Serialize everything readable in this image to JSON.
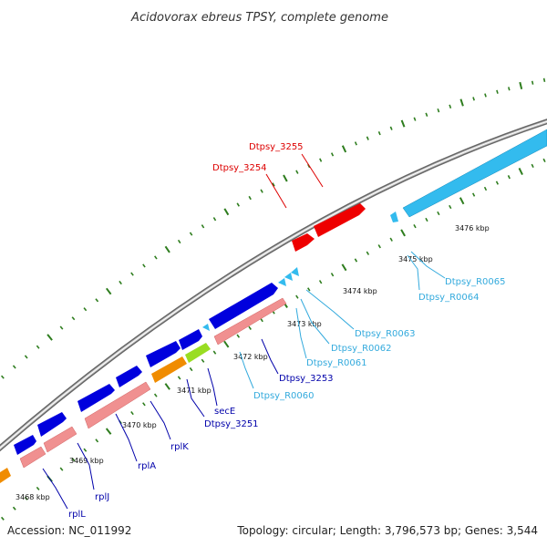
{
  "title": "Acidovorax ebreus TPSY, complete genome",
  "footer": {
    "accession": "Accession: NC_011992",
    "summary": "Topology: circular; Length: 3,796,573 bp; Genes: 3,544"
  },
  "colors": {
    "backbone": "#8a8a8a",
    "tick": "#2e7d1e",
    "cds_forward": "#0000dd",
    "cds_reverse_pink": "#f09090",
    "rna": "#33bbee",
    "highlight_red": "#ee0000",
    "label_blue": "#0000aa",
    "label_cyan": "#33aadd",
    "label_red": "#dd0000",
    "orange": "#f08c00",
    "lime": "#99dd22"
  },
  "kbp_labels": [
    "3468 kbp",
    "3469 kbp",
    "3470 kbp",
    "3471 kbp",
    "3472 kbp",
    "3473 kbp",
    "3474 kbp",
    "3475 kbp",
    "3476 kbp"
  ],
  "feature_labels": [
    {
      "id": "dtpsy-3255",
      "text": "Dtpsy_3255",
      "color": "red"
    },
    {
      "id": "dtpsy-3254",
      "text": "Dtpsy_3254",
      "color": "red"
    },
    {
      "id": "dtpsy-r0065",
      "text": "Dtpsy_R0065",
      "color": "cyan"
    },
    {
      "id": "dtpsy-r0064",
      "text": "Dtpsy_R0064",
      "color": "cyan"
    },
    {
      "id": "dtpsy-r0063",
      "text": "Dtpsy_R0063",
      "color": "cyan"
    },
    {
      "id": "dtpsy-r0062",
      "text": "Dtpsy_R0062",
      "color": "cyan"
    },
    {
      "id": "dtpsy-r0061",
      "text": "Dtpsy_R0061",
      "color": "cyan"
    },
    {
      "id": "dtpsy-3253",
      "text": "Dtpsy_3253",
      "color": "blue"
    },
    {
      "id": "dtpsy-r0060",
      "text": "Dtpsy_R0060",
      "color": "cyan"
    },
    {
      "id": "sece",
      "text": "secE",
      "color": "blue"
    },
    {
      "id": "dtpsy-3251",
      "text": "Dtpsy_3251",
      "color": "blue"
    },
    {
      "id": "rplk",
      "text": "rplK",
      "color": "blue"
    },
    {
      "id": "rpla",
      "text": "rplA",
      "color": "blue"
    },
    {
      "id": "rplj",
      "text": "rplJ",
      "color": "blue"
    },
    {
      "id": "rpll",
      "text": "rplL",
      "color": "blue"
    }
  ]
}
